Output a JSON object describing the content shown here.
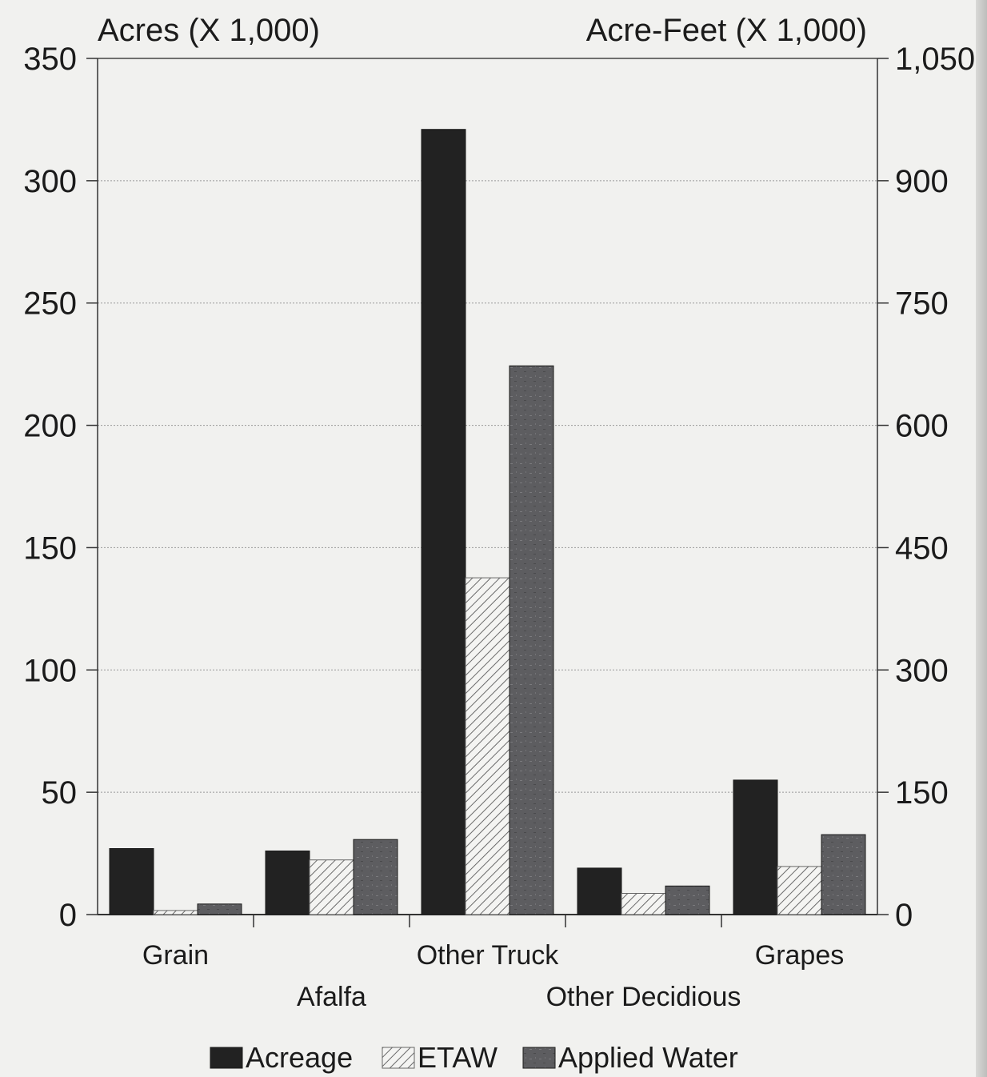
{
  "chart_data": {
    "type": "bar",
    "left_axis_title": "Acres (X 1,000)",
    "right_axis_title": "Acre-Feet (X 1,000)",
    "left_axis": {
      "ylim": [
        0,
        350
      ],
      "ticks": [
        "0",
        "50",
        "100",
        "150",
        "200",
        "250",
        "300",
        "350"
      ]
    },
    "right_axis": {
      "ylim": [
        0,
        1050
      ],
      "ticks": [
        "0",
        "150",
        "300",
        "450",
        "600",
        "750",
        "900",
        "1,050"
      ]
    },
    "grid": true,
    "categories": [
      "Grain",
      "Afalfa",
      "Other Truck",
      "Other Decidious",
      "Grapes"
    ],
    "series": [
      {
        "name": "Acreage",
        "axis": "left",
        "unit": "Acres (X 1,000)",
        "values": [
          27,
          26,
          321,
          19,
          55
        ],
        "color": "#222222",
        "pattern": "solid"
      },
      {
        "name": "ETAW",
        "axis": "right",
        "unit": "Acre-Feet (X 1,000)",
        "values": [
          5,
          67,
          413,
          26,
          59
        ],
        "color": "#f2f2f0",
        "pattern": "hatch"
      },
      {
        "name": "Applied Water",
        "axis": "right",
        "unit": "Acre-Feet (X 1,000)",
        "values": [
          13,
          92,
          673,
          35,
          98
        ],
        "color": "#5b5b5d",
        "pattern": "textured"
      }
    ],
    "legend_position": "bottom"
  }
}
